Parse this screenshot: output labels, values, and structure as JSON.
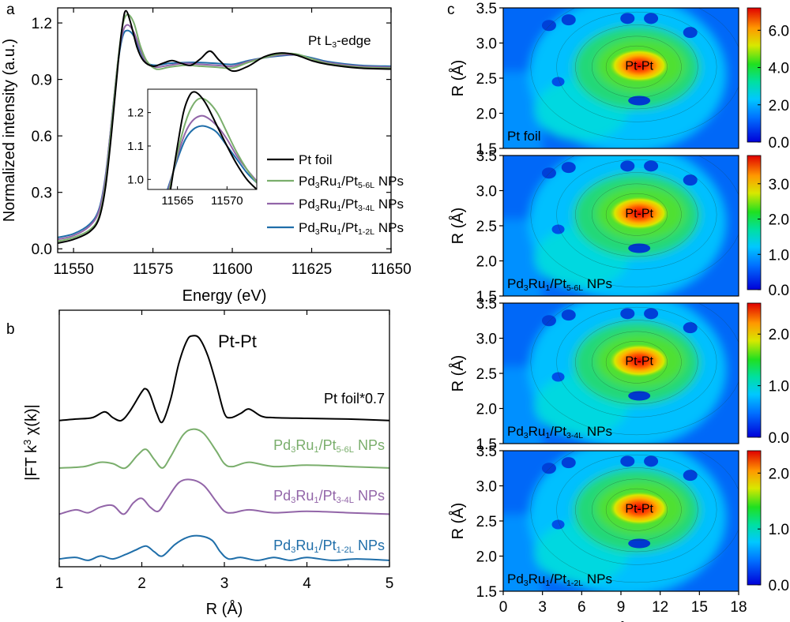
{
  "chart_data": [
    {
      "panel": "a",
      "type": "line",
      "title": "Pt L3-edge",
      "xlabel": "Energy (eV)",
      "ylabel": "Normalized intensity (a.u.)",
      "xlim": [
        11545,
        11650
      ],
      "ylim": [
        -0.02,
        1.28
      ],
      "xticks": [
        "11550",
        "11575",
        "11600",
        "11625",
        "11650"
      ],
      "xtick_values": [
        11550,
        11575,
        11600,
        11625,
        11650
      ],
      "yticks": [
        "0.0",
        "0.3",
        "0.6",
        "0.9",
        "1.2"
      ],
      "ytick_values": [
        0,
        0.3,
        0.6,
        0.9,
        1.2
      ],
      "legend": [
        {
          "label_main": "Pt foil",
          "parts": []
        },
        {
          "label_main": "",
          "parts": [
            [
              "Pd",
              "n"
            ],
            [
              "3",
              "sub"
            ],
            [
              "Ru",
              "n"
            ],
            [
              "1",
              "sub"
            ],
            [
              "/Pt",
              "n"
            ],
            [
              "5-6L",
              "sub"
            ],
            [
              " NPs",
              "n"
            ]
          ]
        },
        {
          "label_main": "",
          "parts": [
            [
              "Pd",
              "n"
            ],
            [
              "3",
              "sub"
            ],
            [
              "Ru",
              "n"
            ],
            [
              "1",
              "sub"
            ],
            [
              "/Pt",
              "n"
            ],
            [
              "3-4L",
              "sub"
            ],
            [
              " NPs",
              "n"
            ]
          ]
        },
        {
          "label_main": "",
          "parts": [
            [
              "Pd",
              "n"
            ],
            [
              "3",
              "sub"
            ],
            [
              "Ru",
              "n"
            ],
            [
              "1",
              "sub"
            ],
            [
              "/Pt",
              "n"
            ],
            [
              "1-2L",
              "sub"
            ],
            [
              " NPs",
              "n"
            ]
          ]
        }
      ],
      "series": [
        {
          "name": "Pt foil",
          "color": "#000000",
          "x": [
            11545,
            11550,
            11555,
            11558,
            11560,
            11562,
            11564,
            11565.5,
            11566.5,
            11568,
            11570,
            11572,
            11575,
            11578,
            11581,
            11584,
            11587,
            11590,
            11593,
            11596,
            11600,
            11605,
            11610,
            11615,
            11620,
            11625,
            11630,
            11640,
            11650
          ],
          "y": [
            0.03,
            0.05,
            0.09,
            0.16,
            0.32,
            0.62,
            0.98,
            1.2,
            1.265,
            1.2,
            1.07,
            1.0,
            0.97,
            0.985,
            1.0,
            0.985,
            0.975,
            1.01,
            1.05,
            1.0,
            0.945,
            0.97,
            1.02,
            1.04,
            1.03,
            1.0,
            0.98,
            0.96,
            0.955
          ]
        },
        {
          "name": "Pd3Ru1/Pt5-6L NPs",
          "color": "#7aae6c",
          "x": [
            11545,
            11550,
            11555,
            11558,
            11560,
            11562,
            11564,
            11565.5,
            11567,
            11569,
            11571,
            11573,
            11576,
            11580,
            11585,
            11590,
            11595,
            11600,
            11605,
            11610,
            11615,
            11620,
            11625,
            11630,
            11640,
            11650
          ],
          "y": [
            0.04,
            0.06,
            0.1,
            0.17,
            0.34,
            0.66,
            1.0,
            1.19,
            1.245,
            1.2,
            1.08,
            1.0,
            0.955,
            0.965,
            0.975,
            0.97,
            0.965,
            0.96,
            0.99,
            1.015,
            1.035,
            1.035,
            1.01,
            0.985,
            0.965,
            0.96
          ]
        },
        {
          "name": "Pd3Ru1/Pt3-4L NPs",
          "color": "#9265a8",
          "x": [
            11545,
            11550,
            11555,
            11558,
            11560,
            11562,
            11564,
            11565.5,
            11567,
            11569,
            11571,
            11573,
            11576,
            11580,
            11585,
            11590,
            11595,
            11600,
            11605,
            11610,
            11615,
            11620,
            11625,
            11630,
            11640,
            11650
          ],
          "y": [
            0.05,
            0.07,
            0.12,
            0.2,
            0.37,
            0.68,
            1.0,
            1.15,
            1.19,
            1.15,
            1.06,
            0.99,
            0.965,
            0.975,
            0.985,
            0.98,
            0.975,
            0.97,
            0.995,
            1.015,
            1.03,
            1.03,
            1.01,
            0.99,
            0.97,
            0.965
          ]
        },
        {
          "name": "Pd3Ru1/Pt1-2L NPs",
          "color": "#1f6ea9",
          "x": [
            11545,
            11550,
            11555,
            11558,
            11560,
            11562,
            11564,
            11565.5,
            11567,
            11569,
            11571,
            11573,
            11576,
            11580,
            11585,
            11590,
            11595,
            11600,
            11605,
            11610,
            11615,
            11620,
            11625,
            11630,
            11640,
            11650
          ],
          "y": [
            0.06,
            0.08,
            0.13,
            0.21,
            0.38,
            0.68,
            0.99,
            1.13,
            1.16,
            1.13,
            1.05,
            0.99,
            0.975,
            0.985,
            0.99,
            0.99,
            0.985,
            0.98,
            1.0,
            1.015,
            1.025,
            1.03,
            1.015,
            0.995,
            0.975,
            0.97
          ]
        }
      ]
    },
    {
      "panel": "a-inset",
      "type": "line",
      "xlim": [
        11562,
        11573
      ],
      "ylim": [
        0.97,
        1.27
      ],
      "xticks": [
        "11565",
        "11570"
      ],
      "xtick_values": [
        11565,
        11570
      ],
      "yticks": [
        "1.0",
        "1.1",
        "1.2"
      ],
      "ytick_values": [
        1.0,
        1.1,
        1.2
      ],
      "series": [
        {
          "name": "Pt foil",
          "color": "#000000",
          "x": [
            11564.3,
            11565,
            11565.6,
            11566.2,
            11566.7,
            11567.3,
            11568,
            11569,
            11570,
            11571,
            11572,
            11573
          ],
          "y": [
            0.97,
            1.1,
            1.2,
            1.25,
            1.262,
            1.25,
            1.22,
            1.16,
            1.1,
            1.045,
            1.0,
            0.97
          ]
        },
        {
          "name": "Pd3Ru1/Pt5-6L NPs",
          "color": "#7aae6c",
          "x": [
            11564.2,
            11565,
            11565.8,
            11566.5,
            11567.2,
            11568,
            11569,
            11570,
            11571,
            11572,
            11573
          ],
          "y": [
            0.97,
            1.08,
            1.17,
            1.22,
            1.242,
            1.235,
            1.2,
            1.14,
            1.08,
            1.03,
            0.99
          ]
        },
        {
          "name": "Pd3Ru1/Pt3-4L NPs",
          "color": "#9265a8",
          "x": [
            11564.1,
            11565,
            11565.8,
            11566.5,
            11567.3,
            11568,
            11569,
            11570,
            11571,
            11572,
            11573
          ],
          "y": [
            0.97,
            1.07,
            1.14,
            1.175,
            1.19,
            1.185,
            1.16,
            1.12,
            1.07,
            1.03,
            0.995
          ]
        },
        {
          "name": "Pd3Ru1/Pt1-2L NPs",
          "color": "#1f6ea9",
          "x": [
            11564.0,
            11565,
            11565.8,
            11566.6,
            11567.4,
            11568.2,
            11569,
            11570,
            11571,
            11572,
            11573
          ],
          "y": [
            0.97,
            1.06,
            1.12,
            1.15,
            1.16,
            1.155,
            1.14,
            1.1,
            1.06,
            1.02,
            0.99
          ]
        }
      ]
    },
    {
      "panel": "b",
      "type": "line",
      "xlabel": "R (Å)",
      "ylabel": "|FT k3 χ(k)|",
      "xlim": [
        1,
        5
      ],
      "ylim": [
        0,
        1
      ],
      "xticks": [
        "1",
        "2",
        "3",
        "4",
        "5"
      ],
      "xtick_values": [
        1,
        2,
        3,
        4,
        5
      ],
      "peak_label": "Pt-Pt",
      "series": [
        {
          "name": "Pt foil*0.7",
          "color": "#000000",
          "label_parts": [
            [
              "Pt foil*0.7",
              "n"
            ]
          ],
          "offset": 0.57,
          "x": [
            1,
            1.2,
            1.4,
            1.55,
            1.65,
            1.75,
            1.85,
            2.0,
            2.05,
            2.1,
            2.18,
            2.25,
            2.35,
            2.45,
            2.55,
            2.62,
            2.7,
            2.8,
            2.9,
            3.0,
            3.08,
            3.2,
            3.3,
            3.45,
            3.6,
            4.0,
            4.5,
            5
          ],
          "y": [
            0,
            0.01,
            0.02,
            0.06,
            0.02,
            0.0,
            0.06,
            0.2,
            0.22,
            0.18,
            0.05,
            -0.01,
            0.15,
            0.4,
            0.56,
            0.59,
            0.57,
            0.45,
            0.26,
            0.05,
            0.02,
            0.05,
            0.08,
            0.03,
            0.02,
            0.015,
            0.01,
            0.0
          ]
        },
        {
          "name": "Pd3Ru1/Pt5-6L NPs",
          "color": "#7aae6c",
          "label_parts": [
            [
              "Pd",
              "n"
            ],
            [
              "3",
              "sub"
            ],
            [
              "Ru",
              "n"
            ],
            [
              "1",
              "sub"
            ],
            [
              "/Pt",
              "n"
            ],
            [
              "5-6L",
              "sub"
            ],
            [
              " NPs",
              "n"
            ]
          ],
          "offset": 0.385,
          "x": [
            1,
            1.3,
            1.5,
            1.65,
            1.8,
            1.95,
            2.05,
            2.15,
            2.25,
            2.35,
            2.5,
            2.62,
            2.75,
            2.9,
            3.0,
            3.1,
            3.3,
            3.6,
            4.0,
            4.5,
            5
          ],
          "y": [
            0,
            0.01,
            0.04,
            0.03,
            0.0,
            0.09,
            0.13,
            0.06,
            0.0,
            0.08,
            0.23,
            0.27,
            0.24,
            0.12,
            0.03,
            0.01,
            0.04,
            0.01,
            0.02,
            0.01,
            0.0
          ]
        },
        {
          "name": "Pd3Ru1/Pt3-4L NPs",
          "color": "#9265a8",
          "label_parts": [
            [
              "Pd",
              "n"
            ],
            [
              "3",
              "sub"
            ],
            [
              "Ru",
              "n"
            ],
            [
              "1",
              "sub"
            ],
            [
              "/Pt",
              "n"
            ],
            [
              "3-4L",
              "sub"
            ],
            [
              " NPs",
              "n"
            ]
          ],
          "offset": 0.205,
          "x": [
            1,
            1.2,
            1.35,
            1.5,
            1.65,
            1.78,
            1.9,
            2.0,
            2.1,
            2.2,
            2.3,
            2.45,
            2.6,
            2.75,
            2.9,
            3.0,
            3.1,
            3.3,
            3.6,
            4.0,
            4.5,
            5
          ],
          "y": [
            0.0,
            0.03,
            0.01,
            0.05,
            0.06,
            0.0,
            0.08,
            0.11,
            0.05,
            0.02,
            0.1,
            0.22,
            0.24,
            0.2,
            0.09,
            0.02,
            0.01,
            0.03,
            0.01,
            0.02,
            0.01,
            0.0
          ]
        },
        {
          "name": "Pd3Ru1/Pt1-2L NPs",
          "color": "#1f6ea9",
          "label_parts": [
            [
              "Pd",
              "n"
            ],
            [
              "3",
              "sub"
            ],
            [
              "Ru",
              "n"
            ],
            [
              "1",
              "sub"
            ],
            [
              "/Pt",
              "n"
            ],
            [
              "1-2L",
              "sub"
            ],
            [
              " NPs",
              "n"
            ]
          ],
          "offset": 0.025,
          "x": [
            1,
            1.2,
            1.35,
            1.5,
            1.65,
            1.8,
            1.92,
            2.05,
            2.15,
            2.25,
            2.4,
            2.55,
            2.7,
            2.85,
            2.95,
            3.05,
            3.2,
            3.4,
            3.6,
            3.8,
            4.0,
            4.3,
            4.6,
            5
          ],
          "y": [
            0.01,
            0.02,
            0.0,
            0.03,
            0.01,
            0.04,
            0.07,
            0.1,
            0.06,
            0.03,
            0.11,
            0.16,
            0.17,
            0.14,
            0.06,
            0.01,
            0.02,
            0.0,
            0.02,
            0.0,
            0.02,
            0.0,
            0.01,
            0.0
          ]
        }
      ]
    },
    {
      "panel": "c",
      "type": "heatmap",
      "xlabel": "k (Å-1)",
      "ylabel": "R (Å)",
      "xlim": [
        0,
        18
      ],
      "ylim": [
        1.5,
        3.5
      ],
      "xticks": [
        "0",
        "3",
        "6",
        "9",
        "12",
        "15",
        "18"
      ],
      "xtick_values": [
        0,
        3,
        6,
        9,
        12,
        15,
        18
      ],
      "yticks": [
        "1.5",
        "2.0",
        "2.5",
        "3.0",
        "3.5"
      ],
      "ytick_values": [
        1.5,
        2.0,
        2.5,
        3.0,
        3.5
      ],
      "peak_label": "Pt-Pt",
      "maps": [
        {
          "name": "Pt foil",
          "label_parts": [
            [
              "Pt foil",
              "n"
            ]
          ],
          "max": 7.2,
          "cbar_ticks": [
            "0.0",
            "2.0",
            "4.0",
            "6.0"
          ],
          "cbar_values": [
            0,
            2,
            4,
            6
          ]
        },
        {
          "name": "Pd3Ru1/Pt5-6L NPs",
          "label_parts": [
            [
              "Pd",
              "n"
            ],
            [
              "3",
              "sub"
            ],
            [
              "Ru",
              "n"
            ],
            [
              "1",
              "sub"
            ],
            [
              "/Pt",
              "n"
            ],
            [
              "5-6L",
              "sub"
            ],
            [
              " NPs",
              "n"
            ]
          ],
          "max": 3.8,
          "cbar_ticks": [
            "0.0",
            "1.0",
            "2.0",
            "3.0"
          ],
          "cbar_values": [
            0,
            1,
            2,
            3
          ]
        },
        {
          "name": "Pd3Ru1/Pt3-4L NPs",
          "label_parts": [
            [
              "Pd",
              "n"
            ],
            [
              "3",
              "sub"
            ],
            [
              "Ru",
              "n"
            ],
            [
              "1",
              "sub"
            ],
            [
              "/Pt",
              "n"
            ],
            [
              "3-4L",
              "sub"
            ],
            [
              " NPs",
              "n"
            ]
          ],
          "max": 2.6,
          "cbar_ticks": [
            "0.0",
            "1.0",
            "2.0"
          ],
          "cbar_values": [
            0,
            1,
            2
          ]
        },
        {
          "name": "Pd3Ru1/Pt1-2L NPs",
          "label_parts": [
            [
              "Pd",
              "n"
            ],
            [
              "3",
              "sub"
            ],
            [
              "Ru",
              "n"
            ],
            [
              "1",
              "sub"
            ],
            [
              "/Pt",
              "n"
            ],
            [
              "1-2L",
              "sub"
            ],
            [
              " NPs",
              "n"
            ]
          ],
          "max": 2.4,
          "cbar_ticks": [
            "0.0",
            "1.0",
            "2.0"
          ],
          "cbar_values": [
            0,
            1,
            2
          ]
        }
      ]
    }
  ],
  "panel_letters": {
    "a": "a",
    "b": "b",
    "c": "c"
  },
  "edge_label": {
    "main": "Pt L",
    "sub": "3",
    "tail": "-edge"
  }
}
